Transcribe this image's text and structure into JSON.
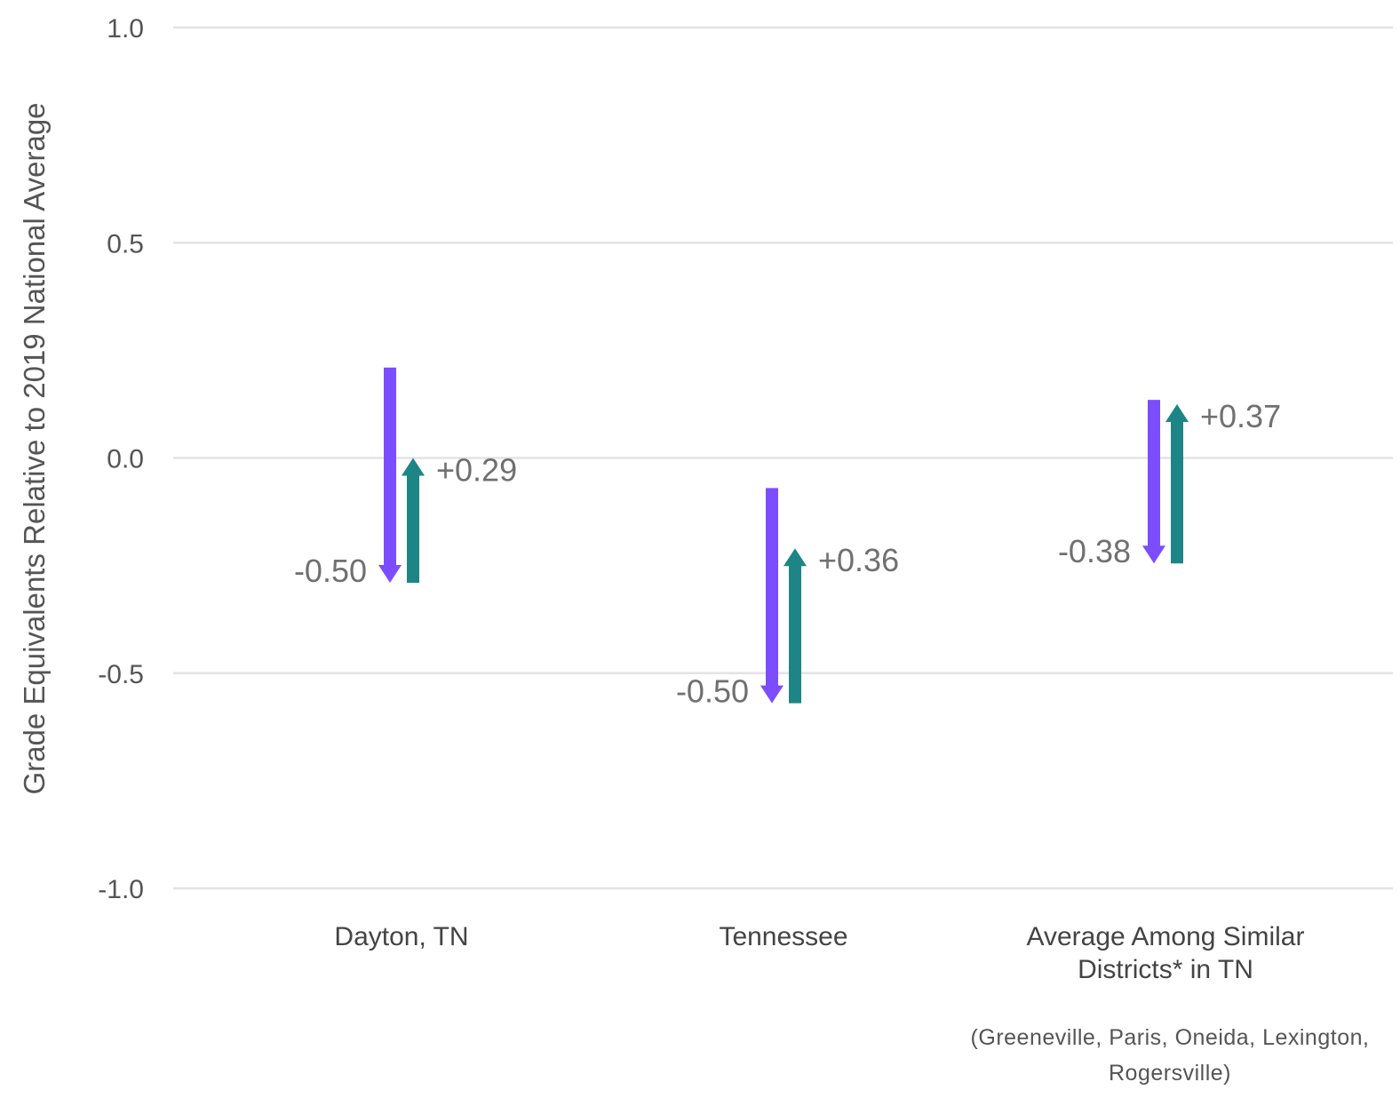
{
  "chart_data": {
    "type": "arrow",
    "ylabel": "Grade Equivalents Relative to 2019 National Average",
    "xlabel": "",
    "ylim": [
      -1.0,
      1.0
    ],
    "yticks": [
      1.0,
      0.5,
      0.0,
      -0.5,
      -1.0
    ],
    "ytick_labels": [
      "1.0",
      "0.5",
      "0.0",
      "-0.5",
      "-1.0"
    ],
    "grid": true,
    "categories": [
      {
        "label_lines": [
          "Dayton, TN"
        ],
        "note_lines": []
      },
      {
        "label_lines": [
          "Tennessee"
        ],
        "note_lines": []
      },
      {
        "label_lines": [
          "Average Among Similar",
          "Districts* in TN"
        ],
        "note_lines": [
          "(Greeneville, Paris, Oneida, Lexington,",
          "Rogersville)"
        ]
      }
    ],
    "series": [
      {
        "direction": "down",
        "color": "#7c4dff",
        "starts": [
          0.21,
          -0.07,
          0.135
        ],
        "ends": [
          -0.29,
          -0.57,
          -0.245
        ],
        "labels": [
          "-0.50",
          "-0.50",
          "-0.38"
        ]
      },
      {
        "direction": "up",
        "color": "#1d8585",
        "starts": [
          -0.29,
          -0.57,
          -0.245
        ],
        "ends": [
          0.0,
          -0.21,
          0.125
        ],
        "labels": [
          "+0.29",
          "+0.36",
          "+0.37"
        ]
      }
    ]
  }
}
